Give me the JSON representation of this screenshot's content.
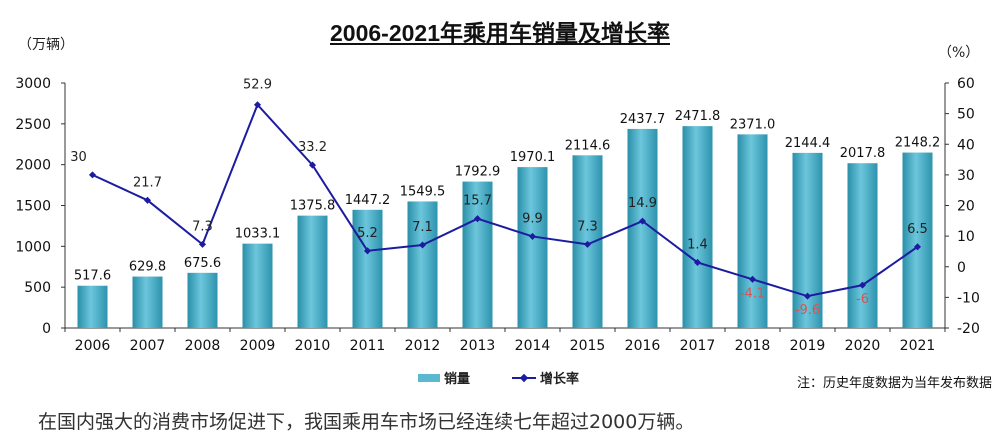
{
  "chart_data": {
    "type": "bar",
    "title": "2006-2021年乘用车销量及增长率",
    "left_unit": "（万辆）",
    "right_unit": "（%）",
    "categories": [
      "2006",
      "2007",
      "2008",
      "2009",
      "2010",
      "2011",
      "2012",
      "2013",
      "2014",
      "2015",
      "2016",
      "2017",
      "2018",
      "2019",
      "2020",
      "2021"
    ],
    "series": [
      {
        "name": "销量",
        "type": "bar",
        "axis": "left",
        "color": "#3fa9c4",
        "values": [
          517.6,
          629.8,
          675.6,
          1033.1,
          1375.8,
          1447.2,
          1549.5,
          1792.9,
          1970.1,
          2114.6,
          2437.7,
          2471.8,
          2371.0,
          2144.4,
          2017.8,
          2148.2
        ],
        "labels": [
          "517.6",
          "629.8",
          "675.6",
          "1033.1",
          "1375.8",
          "1447.2",
          "1549.5",
          "1792.9",
          "1970.1",
          "2114.6",
          "2437.7",
          "2471.8",
          "2371.0",
          "2144.4",
          "2017.8",
          "2148.2"
        ]
      },
      {
        "name": "增长率",
        "type": "line",
        "axis": "right",
        "color": "#1c1ca0",
        "values": [
          30,
          21.7,
          7.3,
          52.9,
          33.2,
          5.2,
          7.1,
          15.7,
          9.9,
          7.3,
          14.9,
          1.4,
          -4.1,
          -9.6,
          -6,
          6.5
        ],
        "labels": [
          "30",
          "21.7",
          "7.3",
          "52.9",
          "33.2",
          "5.2",
          "7.1",
          "15.7",
          "9.9",
          "7.3",
          "14.9",
          "1.4",
          "-4.1",
          "-9.6",
          "-6",
          "6.5"
        ]
      }
    ],
    "left_ylim": [
      0,
      3000
    ],
    "left_ticks": [
      "0",
      "500",
      "1000",
      "1500",
      "2000",
      "2500",
      "3000"
    ],
    "right_ylim": [
      -20,
      60
    ],
    "right_ticks": [
      "-20",
      "-10",
      "0",
      "10",
      "20",
      "30",
      "40",
      "50",
      "60"
    ],
    "negative_label_color": "#d9534f"
  },
  "note": "注：历史年度数据为当年发布数据",
  "caption": "在国内强大的消费市场促进下，我国乘用车市场已经连续七年超过2000万辆。"
}
